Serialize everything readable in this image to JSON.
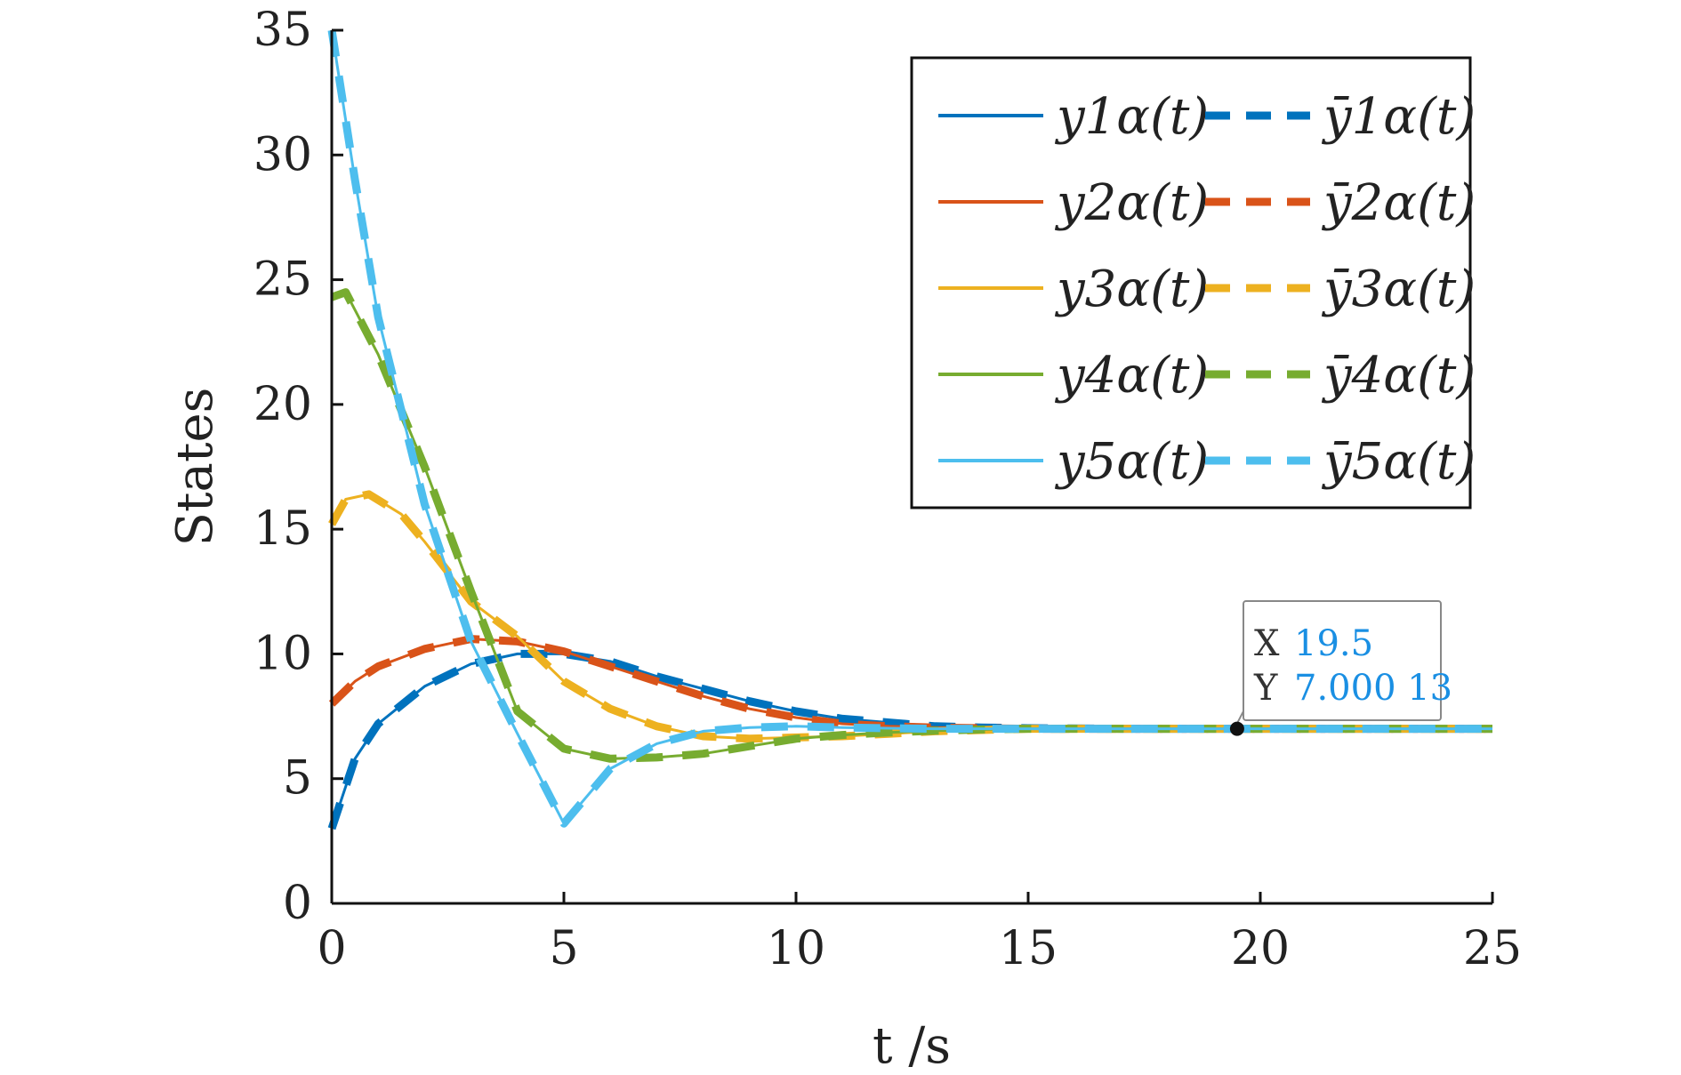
{
  "chart_data": {
    "type": "line",
    "xlabel": "t /s",
    "ylabel": "States",
    "xlim": [
      0,
      25
    ],
    "ylim": [
      0,
      35
    ],
    "xticks": [
      0,
      5,
      10,
      15,
      20,
      25
    ],
    "yticks": [
      0,
      5,
      10,
      15,
      20,
      25,
      30,
      35
    ],
    "grid": false,
    "legend_position": "top-right",
    "series": [
      {
        "name": "y1α(t)",
        "color": "#0072BD",
        "style": "solid",
        "x": [
          0,
          0.5,
          1,
          2,
          3,
          4,
          5,
          6,
          7,
          8,
          9,
          10,
          11,
          12,
          13,
          14,
          15,
          17,
          20,
          25
        ],
        "y": [
          3.0,
          5.8,
          7.2,
          8.7,
          9.6,
          10.0,
          10.0,
          9.7,
          9.1,
          8.6,
          8.1,
          7.7,
          7.4,
          7.25,
          7.1,
          7.05,
          7.02,
          7.0,
          7.0,
          7.0
        ]
      },
      {
        "name": "ȳ1α(t)",
        "color": "#0072BD",
        "style": "dashed",
        "x": [
          0,
          0.5,
          1,
          2,
          3,
          4,
          5,
          6,
          7,
          8,
          9,
          10,
          11,
          12,
          13,
          14,
          15,
          17,
          20,
          25
        ],
        "y": [
          3.0,
          5.8,
          7.2,
          8.7,
          9.6,
          10.0,
          10.0,
          9.7,
          9.1,
          8.6,
          8.1,
          7.7,
          7.4,
          7.25,
          7.1,
          7.05,
          7.02,
          7.0,
          7.0,
          7.0
        ]
      },
      {
        "name": "y2α(t)",
        "color": "#D95319",
        "style": "solid",
        "x": [
          0,
          0.5,
          1,
          2,
          3,
          4,
          5,
          6,
          7,
          8,
          9,
          10,
          11,
          12,
          13,
          14,
          15,
          17,
          20,
          25
        ],
        "y": [
          8.0,
          8.9,
          9.5,
          10.2,
          10.6,
          10.5,
          10.1,
          9.5,
          8.9,
          8.3,
          7.8,
          7.45,
          7.2,
          7.1,
          7.05,
          7.02,
          7.0,
          7.0,
          7.0,
          7.0
        ]
      },
      {
        "name": "ȳ2α(t)",
        "color": "#D95319",
        "style": "dashed",
        "x": [
          0,
          0.5,
          1,
          2,
          3,
          4,
          5,
          6,
          7,
          8,
          9,
          10,
          11,
          12,
          13,
          14,
          15,
          17,
          20,
          25
        ],
        "y": [
          8.0,
          8.9,
          9.5,
          10.2,
          10.6,
          10.5,
          10.1,
          9.5,
          8.9,
          8.3,
          7.8,
          7.45,
          7.2,
          7.1,
          7.05,
          7.02,
          7.0,
          7.0,
          7.0,
          7.0
        ]
      },
      {
        "name": "y3α(t)",
        "color": "#EDB120",
        "style": "solid",
        "x": [
          0,
          0.3,
          0.8,
          1.5,
          2,
          3,
          4,
          5,
          6,
          7,
          8,
          9,
          10,
          11,
          12,
          13,
          14,
          15,
          17,
          20,
          25
        ],
        "y": [
          15.2,
          16.2,
          16.4,
          15.6,
          14.5,
          12.1,
          10.7,
          8.9,
          7.8,
          7.1,
          6.7,
          6.6,
          6.65,
          6.7,
          6.8,
          6.9,
          6.95,
          7.0,
          7.0,
          7.0,
          7.0
        ]
      },
      {
        "name": "ȳ3α(t)",
        "color": "#EDB120",
        "style": "dashed",
        "x": [
          0,
          0.3,
          0.8,
          1.5,
          2,
          3,
          4,
          5,
          6,
          7,
          8,
          9,
          10,
          11,
          12,
          13,
          14,
          15,
          17,
          20,
          25
        ],
        "y": [
          15.2,
          16.2,
          16.4,
          15.6,
          14.5,
          12.1,
          10.7,
          8.9,
          7.8,
          7.1,
          6.7,
          6.6,
          6.65,
          6.7,
          6.8,
          6.9,
          6.95,
          7.0,
          7.0,
          7.0,
          7.0
        ]
      },
      {
        "name": "y4α(t)",
        "color": "#77AC30",
        "style": "solid",
        "x": [
          0,
          0.3,
          1,
          2,
          3,
          4,
          5,
          6,
          7,
          8,
          9,
          10,
          11,
          12,
          13,
          14,
          15,
          17,
          20,
          25
        ],
        "y": [
          24.3,
          24.5,
          22.0,
          17.5,
          12.5,
          7.7,
          6.2,
          5.8,
          5.85,
          6.0,
          6.3,
          6.6,
          6.75,
          6.85,
          6.92,
          6.97,
          7.0,
          7.0,
          7.0,
          7.0
        ]
      },
      {
        "name": "ȳ4α(t)",
        "color": "#77AC30",
        "style": "dashed",
        "x": [
          0,
          0.3,
          1,
          2,
          3,
          4,
          5,
          6,
          7,
          8,
          9,
          10,
          11,
          12,
          13,
          14,
          15,
          17,
          20,
          25
        ],
        "y": [
          24.3,
          24.5,
          22.0,
          17.5,
          12.5,
          7.7,
          6.2,
          5.8,
          5.85,
          6.0,
          6.3,
          6.6,
          6.75,
          6.85,
          6.92,
          6.97,
          7.0,
          7.0,
          7.0,
          7.0
        ]
      },
      {
        "name": "y5α(t)",
        "color": "#4DBEEE",
        "style": "solid",
        "x": [
          0,
          0.5,
          1,
          2,
          3,
          4,
          5,
          6,
          7,
          8,
          9,
          10,
          11,
          12,
          13,
          14,
          15,
          17,
          20,
          25
        ],
        "y": [
          35.0,
          29.0,
          23.5,
          16.0,
          10.5,
          6.8,
          3.2,
          5.4,
          6.4,
          6.9,
          7.05,
          7.1,
          7.05,
          7.02,
          7.0,
          7.0,
          7.0,
          7.0,
          7.0,
          7.0
        ]
      },
      {
        "name": "ȳ5α(t)",
        "color": "#4DBEEE",
        "style": "dashed",
        "x": [
          0,
          0.5,
          1,
          2,
          3,
          4,
          5,
          6,
          7,
          8,
          9,
          10,
          11,
          12,
          13,
          14,
          15,
          17,
          20,
          25
        ],
        "y": [
          35.0,
          29.0,
          23.5,
          16.0,
          10.5,
          6.8,
          3.2,
          5.4,
          6.4,
          6.9,
          7.05,
          7.1,
          7.05,
          7.02,
          7.0,
          7.0,
          7.0,
          7.0,
          7.0,
          7.0
        ]
      }
    ],
    "datatip": {
      "x_key": "X",
      "x_value": "19.5",
      "y_key": "Y",
      "y_value": "7.000 13",
      "x": 19.5,
      "y": 7.00013,
      "value_color": "#1a8fe3"
    }
  }
}
